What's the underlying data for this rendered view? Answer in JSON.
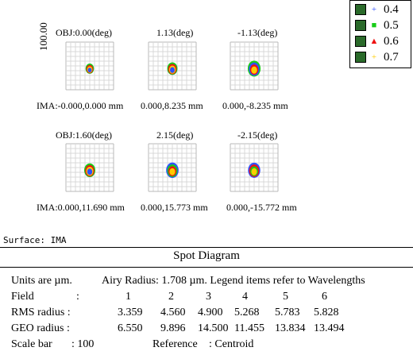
{
  "chart_data": {
    "type": "spot_diagram",
    "y_scale_label": "100.00",
    "fields": [
      {
        "label": "OBJ:0.00(deg)",
        "image": "IMA:-0.000,0.000 mm"
      },
      {
        "label": "1.13(deg)",
        "image": "0.000,8.235 mm"
      },
      {
        "label": "-1.13(deg)",
        "image": "0.000,-8.235 mm"
      },
      {
        "label": "OBJ:1.60(deg)",
        "image": "IMA:0.000,11.690 mm"
      },
      {
        "label": "2.15(deg)",
        "image": "0.000,15.773 mm"
      },
      {
        "label": "-2.15(deg)",
        "image": "0.000,-15.772 mm"
      }
    ],
    "legend": [
      {
        "label": "0.4",
        "color": "#3050ff",
        "mark": "+"
      },
      {
        "label": "0.5",
        "color": "#18cc18",
        "mark": "■"
      },
      {
        "label": "0.6",
        "color": "#ee1111",
        "mark": "▲"
      },
      {
        "label": "0.7",
        "color": "#ffcc00",
        "mark": "+"
      }
    ],
    "rms_radius": [
      3.359,
      4.56,
      4.9,
      5.268,
      5.783,
      5.828
    ],
    "geo_radius": [
      6.55,
      9.896,
      14.5,
      11.455,
      13.834,
      13.494
    ]
  },
  "surface": "Surface: IMA",
  "panel": {
    "title": "Spot Diagram",
    "units": "Units are µm.",
    "airy": "Airy Radius: 1.708 µm. Legend items refer to Wavelengths",
    "field_label": "Field",
    "colon": ":",
    "field_numbers": [
      "1",
      "2",
      "3",
      "4",
      "5",
      "6"
    ],
    "rms_label": "RMS radius :",
    "rms_values": [
      "3.359",
      "4.560",
      "4.900",
      "5.268",
      "5.783",
      "5.828"
    ],
    "geo_label": "GEO radius :",
    "geo_values": [
      "6.550",
      "9.896",
      "14.500",
      "11.455",
      "13.834",
      "13.494"
    ],
    "scale_bar_label": "Scale bar",
    "scale_bar_value": ": 100",
    "reference_label": "Reference",
    "reference_value": ":  Centroid"
  }
}
